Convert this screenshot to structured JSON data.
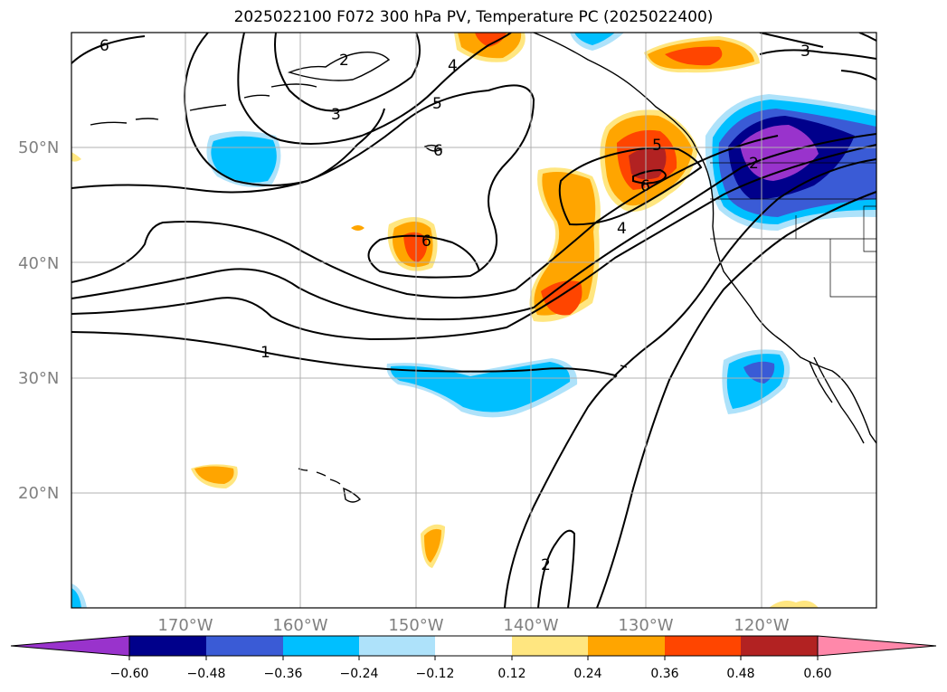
{
  "title": "2025022100 F072 300 hPa PV, Temperature PC (2025022400)",
  "map": {
    "projection": "equirectangular",
    "lon_range": [
      -180,
      -110
    ],
    "lat_range": [
      10,
      60
    ],
    "latitude_labels": [
      "20°N",
      "30°N",
      "40°N",
      "50°N"
    ],
    "longitude_labels": [
      "170°W",
      "160°W",
      "150°W",
      "140°W",
      "130°W",
      "120°W"
    ],
    "grid": true
  },
  "contour_labels": [
    "6",
    "4",
    "3",
    "5",
    "2",
    "3",
    "6",
    "6",
    "5",
    "6",
    "4",
    "2",
    "1",
    "2"
  ],
  "colorbar": {
    "ticks": [
      "−0.60",
      "−0.48",
      "−0.36",
      "−0.24",
      "−0.12",
      "0.12",
      "0.24",
      "0.36",
      "0.48",
      "0.60"
    ],
    "colors": [
      "#9933cc",
      "#00008b",
      "#3a5bd6",
      "#00bfff",
      "#aee2fa",
      "#ffffff",
      "#ffe680",
      "#ffa500",
      "#ff4500",
      "#b22222",
      "#ff88aa"
    ]
  }
}
